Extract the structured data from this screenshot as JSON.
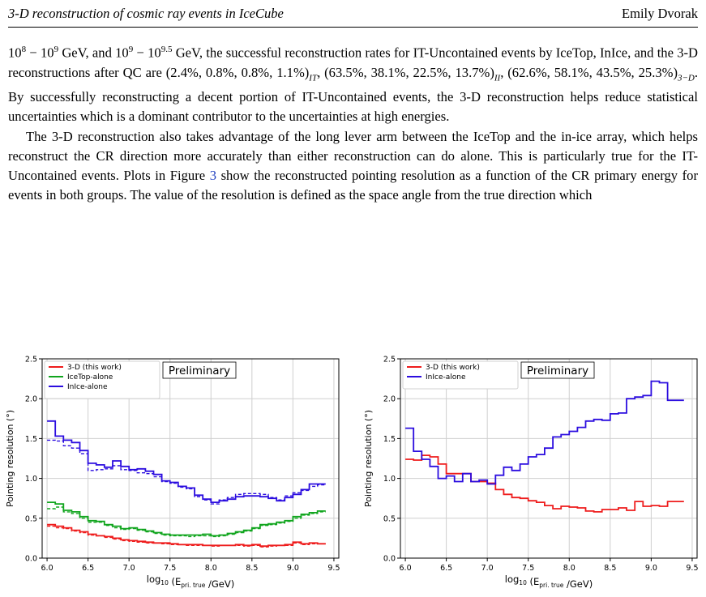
{
  "header": {
    "running_title": "3-D reconstruction of cosmic ray events in IceCube",
    "author": "Emily Dvorak"
  },
  "body": {
    "para1": [
      {
        "t": "10"
      },
      {
        "sup": "8"
      },
      {
        "t": " − 10"
      },
      {
        "sup": "9"
      },
      {
        "t": " GeV, and 10"
      },
      {
        "sup": "9"
      },
      {
        "t": " − 10"
      },
      {
        "sup": "9.5"
      },
      {
        "t": " GeV, the successful reconstruction rates for IT-Uncontained events by IceTop, InIce, and the 3-D reconstructions after QC are (2.4%, 0.8%, 0.8%, 1.1%)"
      },
      {
        "sub": "IT"
      },
      {
        "t": ", (63.5%, 38.1%, 22.5%, 13.7%)"
      },
      {
        "sub": "II"
      },
      {
        "t": ", (62.6%, 58.1%, 43.5%, 25.3%)"
      },
      {
        "sub": "3−D"
      },
      {
        "t": ". By successfully reconstructing a decent portion of IT-Uncontained events, the 3-D reconstruction helps reduce statistical uncertainties which is a dominant contributor to the uncertainties at high energies."
      }
    ],
    "para2": [
      {
        "t": "The 3-D reconstruction also takes advantage of the long lever arm between the IceTop and the in-ice array, which helps reconstruct the CR direction more accurately than either reconstruction can do alone.  This is particularly true for the IT-Uncontained events.  Plots in Figure "
      },
      {
        "ref": "3"
      },
      {
        "t": " show the reconstructed pointing resolution as a function of the CR primary energy for events in both groups.  The value of the resolution is defined as the space angle from the true direction which"
      }
    ]
  },
  "chart_data": [
    {
      "type": "line",
      "step": true,
      "xlabel": "log₁₀ (E_pri. true /GeV)",
      "ylabel": "Pointing resolution (°)",
      "xlim": [
        5.94,
        9.56
      ],
      "ylim": [
        0,
        2.5
      ],
      "xticks": [
        "6.0",
        "6.5",
        "7.0",
        "7.5",
        "8.0",
        "8.5",
        "9.0",
        "9.5"
      ],
      "yticks": [
        "0.0",
        "0.5",
        "1.0",
        "1.5",
        "2.0",
        "2.5"
      ],
      "grid": true,
      "legend_position": "top-left",
      "annotation": "Preliminary",
      "x_edges": [
        6.0,
        6.1,
        6.2,
        6.3,
        6.4,
        6.5,
        6.6,
        6.7,
        6.8,
        6.9,
        7.0,
        7.1,
        7.2,
        7.3,
        7.4,
        7.5,
        7.6,
        7.7,
        7.8,
        7.9,
        8.0,
        8.1,
        8.2,
        8.3,
        8.4,
        8.5,
        8.6,
        8.7,
        8.8,
        8.9,
        9.0,
        9.1,
        9.2,
        9.3,
        9.4
      ],
      "series": [
        {
          "name": "3-D (this work)",
          "color": "#ee1c1c",
          "style": "solid",
          "values": [
            0.42,
            0.4,
            0.38,
            0.35,
            0.33,
            0.3,
            0.28,
            0.27,
            0.25,
            0.23,
            0.22,
            0.21,
            0.2,
            0.19,
            0.19,
            0.18,
            0.17,
            0.17,
            0.17,
            0.16,
            0.16,
            0.16,
            0.16,
            0.17,
            0.16,
            0.17,
            0.15,
            0.16,
            0.16,
            0.17,
            0.2,
            0.18,
            0.19,
            0.18
          ]
        },
        {
          "name": "3-D (this work)",
          "color": "#ee1c1c",
          "style": "dashed",
          "values": [
            0.4,
            0.38,
            0.37,
            0.34,
            0.32,
            0.29,
            0.28,
            0.26,
            0.24,
            0.22,
            0.21,
            0.2,
            0.19,
            0.19,
            0.18,
            0.17,
            0.17,
            0.16,
            0.16,
            0.16,
            0.15,
            0.16,
            0.16,
            0.16,
            0.15,
            0.16,
            0.14,
            0.15,
            0.16,
            0.16,
            0.19,
            0.17,
            0.18,
            0.18
          ]
        },
        {
          "name": "IceTop-alone",
          "color": "#11a51e",
          "style": "solid",
          "values": [
            0.7,
            0.68,
            0.6,
            0.58,
            0.52,
            0.47,
            0.46,
            0.42,
            0.4,
            0.37,
            0.38,
            0.36,
            0.34,
            0.32,
            0.3,
            0.29,
            0.29,
            0.29,
            0.29,
            0.3,
            0.28,
            0.29,
            0.31,
            0.33,
            0.35,
            0.38,
            0.42,
            0.43,
            0.45,
            0.47,
            0.52,
            0.55,
            0.57,
            0.59
          ]
        },
        {
          "name": "IceTop-alone",
          "color": "#11a51e",
          "style": "dashed",
          "values": [
            0.62,
            0.64,
            0.58,
            0.56,
            0.5,
            0.45,
            0.45,
            0.41,
            0.38,
            0.36,
            0.37,
            0.35,
            0.33,
            0.31,
            0.29,
            0.28,
            0.28,
            0.27,
            0.28,
            0.28,
            0.27,
            0.28,
            0.3,
            0.32,
            0.34,
            0.37,
            0.41,
            0.42,
            0.44,
            0.46,
            0.5,
            0.54,
            0.56,
            0.58
          ]
        },
        {
          "name": "InIce-alone",
          "color": "#2b0ddf",
          "style": "solid",
          "values": [
            1.72,
            1.53,
            1.48,
            1.45,
            1.35,
            1.19,
            1.17,
            1.14,
            1.22,
            1.15,
            1.11,
            1.12,
            1.09,
            1.05,
            0.97,
            0.95,
            0.9,
            0.88,
            0.79,
            0.74,
            0.7,
            0.72,
            0.74,
            0.77,
            0.78,
            0.78,
            0.77,
            0.75,
            0.72,
            0.76,
            0.8,
            0.86,
            0.93,
            0.93
          ]
        },
        {
          "name": "InIce-alone",
          "color": "#2b0ddf",
          "style": "dashed",
          "values": [
            1.48,
            1.47,
            1.41,
            1.38,
            1.31,
            1.1,
            1.11,
            1.12,
            1.16,
            1.11,
            1.1,
            1.07,
            1.06,
            1.02,
            0.96,
            0.94,
            0.89,
            0.87,
            0.77,
            0.73,
            0.68,
            0.73,
            0.76,
            0.8,
            0.81,
            0.81,
            0.8,
            0.76,
            0.73,
            0.78,
            0.82,
            0.85,
            0.9,
            0.92
          ]
        }
      ]
    },
    {
      "type": "line",
      "step": true,
      "xlabel": "log₁₀ (E_pri. true /GeV)",
      "ylabel": "Pointing resolution (°)",
      "xlim": [
        5.94,
        9.56
      ],
      "ylim": [
        0,
        2.5
      ],
      "xticks": [
        "6.0",
        "6.5",
        "7.0",
        "7.5",
        "8.0",
        "8.5",
        "9.0",
        "9.5"
      ],
      "yticks": [
        "0.0",
        "0.5",
        "1.0",
        "1.5",
        "2.0",
        "2.5"
      ],
      "grid": true,
      "legend_position": "top-left",
      "annotation": "Preliminary",
      "x_edges": [
        6.0,
        6.1,
        6.2,
        6.3,
        6.4,
        6.5,
        6.6,
        6.7,
        6.8,
        6.9,
        7.0,
        7.1,
        7.2,
        7.3,
        7.4,
        7.5,
        7.6,
        7.7,
        7.8,
        7.9,
        8.0,
        8.1,
        8.2,
        8.3,
        8.4,
        8.5,
        8.6,
        8.7,
        8.8,
        8.9,
        9.0,
        9.1,
        9.2,
        9.3,
        9.4
      ],
      "series": [
        {
          "name": "3-D (this work)",
          "color": "#ee1c1c",
          "style": "solid",
          "values": [
            1.24,
            1.23,
            1.29,
            1.27,
            1.18,
            1.06,
            1.06,
            1.06,
            0.96,
            0.96,
            0.94,
            0.86,
            0.8,
            0.76,
            0.75,
            0.72,
            0.7,
            0.66,
            0.62,
            0.65,
            0.64,
            0.63,
            0.59,
            0.58,
            0.61,
            0.61,
            0.63,
            0.6,
            0.71,
            0.65,
            0.66,
            0.65,
            0.71,
            0.71
          ]
        },
        {
          "name": "InIce-alone",
          "color": "#2b0ddf",
          "style": "solid",
          "values": [
            1.63,
            1.34,
            1.24,
            1.15,
            1.0,
            1.03,
            0.96,
            1.06,
            0.96,
            0.98,
            0.93,
            1.04,
            1.14,
            1.1,
            1.18,
            1.27,
            1.3,
            1.38,
            1.52,
            1.55,
            1.59,
            1.64,
            1.72,
            1.74,
            1.73,
            1.81,
            1.82,
            2.0,
            2.02,
            2.04,
            2.22,
            2.2,
            1.98,
            1.98
          ]
        }
      ]
    }
  ]
}
